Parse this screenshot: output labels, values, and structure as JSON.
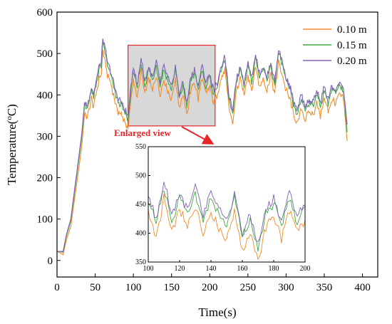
{
  "chart_data": {
    "type": "line",
    "xlabel": "Time(s)",
    "ylabel_main": "Temperature(",
    "ylabel_sup": "o",
    "ylabel_end": "C)",
    "xlim": [
      0,
      420
    ],
    "ylim": [
      -40,
      600
    ],
    "xticks": [
      0,
      50,
      100,
      150,
      200,
      250,
      300,
      350,
      400
    ],
    "yticks": [
      0,
      100,
      200,
      300,
      400,
      500,
      600
    ],
    "legend_position": "top-right",
    "series": [
      {
        "name": "0.10 m",
        "color": "#f28c28",
        "offset": -30
      },
      {
        "name": "0.15 m",
        "color": "#3daa3d",
        "offset": -8
      },
      {
        "name": "0.20 m",
        "color": "#8060b8",
        "offset": 0
      }
    ],
    "base_profile": [
      [
        0,
        22
      ],
      [
        8,
        22
      ],
      [
        12,
        60
      ],
      [
        18,
        100
      ],
      [
        25,
        200
      ],
      [
        32,
        300
      ],
      [
        36,
        380
      ],
      [
        40,
        375
      ],
      [
        45,
        420
      ],
      [
        48,
        400
      ],
      [
        52,
        440
      ],
      [
        55,
        470
      ],
      [
        58,
        480
      ],
      [
        60,
        535
      ],
      [
        63,
        510
      ],
      [
        66,
        480
      ],
      [
        70,
        460
      ],
      [
        75,
        420
      ],
      [
        80,
        390
      ],
      [
        85,
        380
      ],
      [
        90,
        360
      ],
      [
        93,
        345
      ],
      [
        97,
        420
      ],
      [
        100,
        470
      ],
      [
        105,
        420
      ],
      [
        110,
        490
      ],
      [
        115,
        430
      ],
      [
        120,
        470
      ],
      [
        125,
        440
      ],
      [
        130,
        480
      ],
      [
        135,
        430
      ],
      [
        140,
        470
      ],
      [
        145,
        440
      ],
      [
        150,
        420
      ],
      [
        155,
        470
      ],
      [
        160,
        400
      ],
      [
        165,
        430
      ],
      [
        170,
        380
      ],
      [
        175,
        440
      ],
      [
        180,
        460
      ],
      [
        185,
        420
      ],
      [
        190,
        470
      ],
      [
        195,
        430
      ],
      [
        200,
        450
      ],
      [
        205,
        410
      ],
      [
        210,
        430
      ],
      [
        215,
        470
      ],
      [
        220,
        490
      ],
      [
        225,
        400
      ],
      [
        230,
        360
      ],
      [
        235,
        440
      ],
      [
        240,
        470
      ],
      [
        245,
        430
      ],
      [
        250,
        480
      ],
      [
        255,
        440
      ],
      [
        260,
        500
      ],
      [
        265,
        450
      ],
      [
        270,
        470
      ],
      [
        275,
        440
      ],
      [
        280,
        480
      ],
      [
        285,
        430
      ],
      [
        290,
        510
      ],
      [
        295,
        480
      ],
      [
        300,
        440
      ],
      [
        305,
        420
      ],
      [
        310,
        380
      ],
      [
        315,
        360
      ],
      [
        320,
        400
      ],
      [
        325,
        370
      ],
      [
        330,
        390
      ],
      [
        335,
        380
      ],
      [
        340,
        410
      ],
      [
        345,
        380
      ],
      [
        350,
        420
      ],
      [
        355,
        390
      ],
      [
        360,
        420
      ],
      [
        365,
        410
      ],
      [
        370,
        430
      ],
      [
        375,
        420
      ],
      [
        380,
        320
      ]
    ],
    "highlight_box": {
      "x": [
        93,
        207
      ],
      "y": [
        325,
        520
      ]
    },
    "annotation": {
      "text": "Enlarged view",
      "x": 120,
      "y": 275,
      "arrow_to": [
        205,
        240
      ]
    },
    "inset": {
      "xlim": [
        100,
        200
      ],
      "ylim": [
        350,
        550
      ],
      "xticks": [
        100,
        120,
        140,
        160,
        180,
        200
      ],
      "yticks": [
        350,
        400,
        450,
        500,
        550
      ]
    }
  }
}
